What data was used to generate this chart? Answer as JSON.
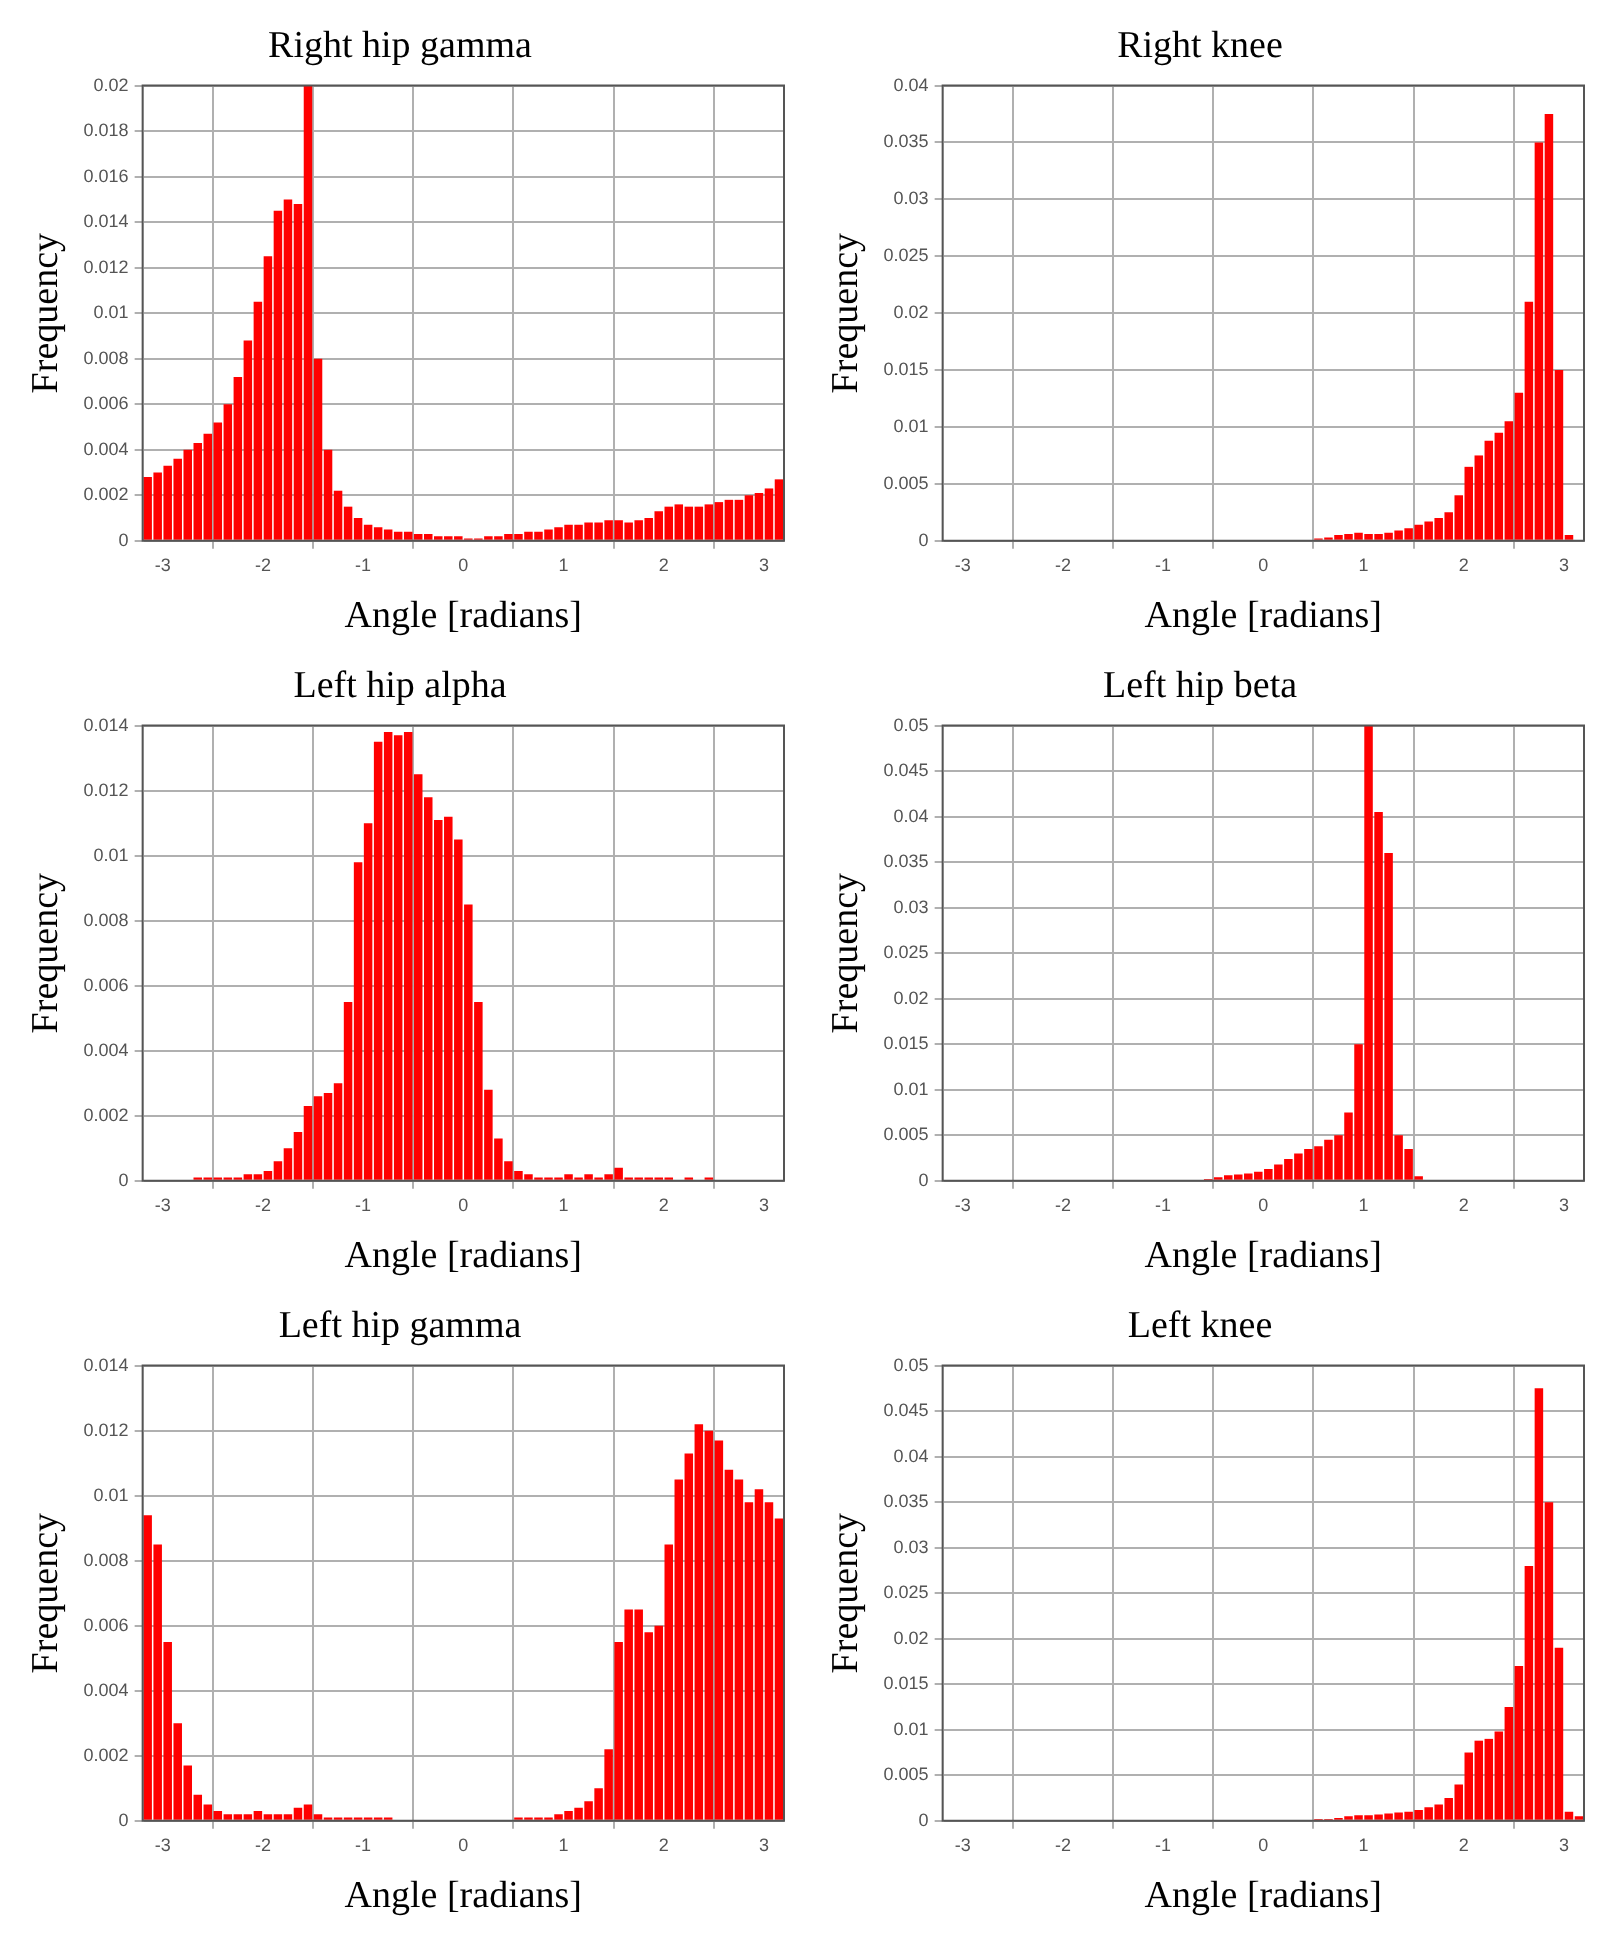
{
  "chart_data": [
    {
      "type": "histogram",
      "title": "Right hip gamma",
      "xlabel": "Angle [radians]",
      "ylabel": "Frequency",
      "color": "#ff0000",
      "grid": true,
      "xlim": [
        -3.2,
        3.2
      ],
      "xticks": [
        -3,
        -2,
        -1,
        0,
        1,
        2,
        3
      ],
      "ylim": [
        0,
        0.02
      ],
      "yticks": [
        0,
        0.002,
        0.004,
        0.006,
        0.008,
        0.01,
        0.012,
        0.014,
        0.016,
        0.018,
        0.02
      ],
      "bins": [
        -3.2,
        -3.1,
        -3.0,
        -2.9,
        -2.8,
        -2.7,
        -2.6,
        -2.5,
        -2.4,
        -2.3,
        -2.2,
        -2.1,
        -2.0,
        -1.9,
        -1.8,
        -1.7,
        -1.6,
        -1.5,
        -1.4,
        -1.3,
        -1.2,
        -1.1,
        -1.0,
        -0.9,
        -0.8,
        -0.7,
        -0.6,
        -0.5,
        -0.4,
        -0.3,
        -0.2,
        -0.1,
        0,
        0.1,
        0.2,
        0.3,
        0.4,
        0.5,
        0.6,
        0.7,
        0.8,
        0.9,
        1.0,
        1.1,
        1.2,
        1.3,
        1.4,
        1.5,
        1.6,
        1.7,
        1.8,
        1.9,
        2.0,
        2.1,
        2.2,
        2.3,
        2.4,
        2.5,
        2.6,
        2.7,
        2.8,
        2.9,
        3.0,
        3.1,
        3.2
      ],
      "values": [
        0.0028,
        0.003,
        0.0033,
        0.0036,
        0.004,
        0.0043,
        0.0047,
        0.0052,
        0.006,
        0.0072,
        0.0088,
        0.0105,
        0.0125,
        0.0145,
        0.015,
        0.0148,
        0.02,
        0.008,
        0.004,
        0.0022,
        0.0015,
        0.001,
        0.0007,
        0.0006,
        0.0005,
        0.0004,
        0.0004,
        0.0003,
        0.0003,
        0.0002,
        0.0002,
        0.0002,
        0.0001,
        0.0001,
        0.0002,
        0.0002,
        0.0003,
        0.0003,
        0.0004,
        0.0004,
        0.0005,
        0.0006,
        0.0007,
        0.0007,
        0.0008,
        0.0008,
        0.0009,
        0.0009,
        0.0008,
        0.0009,
        0.001,
        0.0013,
        0.0015,
        0.0016,
        0.0015,
        0.0015,
        0.0016,
        0.0017,
        0.0018,
        0.0018,
        0.002,
        0.0021,
        0.0023,
        0.0027
      ]
    },
    {
      "type": "histogram",
      "title": "Right knee",
      "xlabel": "Angle [radians]",
      "ylabel": "Frequency",
      "color": "#ff0000",
      "grid": true,
      "xlim": [
        -3.2,
        3.2
      ],
      "xticks": [
        -3,
        -2,
        -1,
        0,
        1,
        2,
        3
      ],
      "ylim": [
        0,
        0.04
      ],
      "yticks": [
        0,
        0.005,
        0.01,
        0.015,
        0.02,
        0.025,
        0.03,
        0.035,
        0.04
      ],
      "bins": [
        -3.2,
        -3.1,
        -3.0,
        -2.9,
        -2.8,
        -2.7,
        -2.6,
        -2.5,
        -2.4,
        -2.3,
        -2.2,
        -2.1,
        -2.0,
        -1.9,
        -1.8,
        -1.7,
        -1.6,
        -1.5,
        -1.4,
        -1.3,
        -1.2,
        -1.1,
        -1.0,
        -0.9,
        -0.8,
        -0.7,
        -0.6,
        -0.5,
        -0.4,
        -0.3,
        -0.2,
        -0.1,
        0,
        0.1,
        0.2,
        0.3,
        0.4,
        0.5,
        0.6,
        0.7,
        0.8,
        0.9,
        1.0,
        1.1,
        1.2,
        1.3,
        1.4,
        1.5,
        1.6,
        1.7,
        1.8,
        1.9,
        2.0,
        2.1,
        2.2,
        2.3,
        2.4,
        2.5,
        2.6,
        2.7,
        2.8,
        2.9,
        3.0,
        3.1,
        3.2
      ],
      "values": [
        0,
        0,
        0,
        0,
        0,
        0,
        0,
        0,
        0,
        0,
        0,
        0,
        0,
        0,
        0,
        0,
        0,
        0,
        0,
        0,
        0,
        0,
        0,
        0,
        0,
        0,
        0,
        0,
        0,
        0,
        0,
        0,
        0,
        0,
        0,
        0,
        0,
        0.0002,
        0.0003,
        0.0005,
        0.0006,
        0.0007,
        0.0006,
        0.0006,
        0.0007,
        0.0009,
        0.0011,
        0.0014,
        0.0017,
        0.002,
        0.0025,
        0.004,
        0.0065,
        0.0075,
        0.0088,
        0.0095,
        0.0105,
        0.013,
        0.021,
        0.035,
        0.0375,
        0.015,
        0.0005,
        0
      ]
    },
    {
      "type": "histogram",
      "title": "Left hip alpha",
      "xlabel": "Angle [radians]",
      "ylabel": "Frequency",
      "color": "#ff0000",
      "grid": true,
      "xlim": [
        -3.2,
        3.2
      ],
      "xticks": [
        -3,
        -2,
        -1,
        0,
        1,
        2,
        3
      ],
      "ylim": [
        0,
        0.014
      ],
      "yticks": [
        0,
        0.002,
        0.004,
        0.006,
        0.008,
        0.01,
        0.012,
        0.014
      ],
      "bins": [
        -3.2,
        -3.1,
        -3.0,
        -2.9,
        -2.8,
        -2.7,
        -2.6,
        -2.5,
        -2.4,
        -2.3,
        -2.2,
        -2.1,
        -2.0,
        -1.9,
        -1.8,
        -1.7,
        -1.6,
        -1.5,
        -1.4,
        -1.3,
        -1.2,
        -1.1,
        -1.0,
        -0.9,
        -0.8,
        -0.7,
        -0.6,
        -0.5,
        -0.4,
        -0.3,
        -0.2,
        -0.1,
        0,
        0.1,
        0.2,
        0.3,
        0.4,
        0.5,
        0.6,
        0.7,
        0.8,
        0.9,
        1.0,
        1.1,
        1.2,
        1.3,
        1.4,
        1.5,
        1.6,
        1.7,
        1.8,
        1.9,
        2.0,
        2.1,
        2.2,
        2.3,
        2.4,
        2.5,
        2.6,
        2.7,
        2.8,
        2.9,
        3.0,
        3.1,
        3.2
      ],
      "values": [
        0,
        0,
        0,
        0,
        0,
        0.0001,
        0.0001,
        0.0001,
        0.0001,
        0.0001,
        0.0002,
        0.0002,
        0.0003,
        0.0006,
        0.001,
        0.0015,
        0.0023,
        0.0026,
        0.0027,
        0.003,
        0.0055,
        0.0098,
        0.011,
        0.0135,
        0.0138,
        0.0137,
        0.0138,
        0.0125,
        0.0118,
        0.0111,
        0.0112,
        0.0105,
        0.0085,
        0.0055,
        0.0028,
        0.0013,
        0.0006,
        0.0003,
        0.0002,
        0.0001,
        0.0001,
        0.0001,
        0.0002,
        0.0001,
        0.0002,
        0.0001,
        0.0002,
        0.0004,
        0.0001,
        0.0001,
        0.0001,
        0.0001,
        0.0001,
        0,
        0.0001,
        0,
        0.0001,
        0,
        0,
        0,
        0,
        0,
        0,
        0
      ]
    },
    {
      "type": "histogram",
      "title": "Left hip beta",
      "xlabel": "Angle [radians]",
      "ylabel": "Frequency",
      "color": "#ff0000",
      "grid": true,
      "xlim": [
        -3.2,
        3.2
      ],
      "xticks": [
        -3,
        -2,
        -1,
        0,
        1,
        2,
        3
      ],
      "ylim": [
        0,
        0.05
      ],
      "yticks": [
        0,
        0.005,
        0.01,
        0.015,
        0.02,
        0.025,
        0.03,
        0.035,
        0.04,
        0.045,
        0.05
      ],
      "bins": [
        -3.2,
        -3.1,
        -3.0,
        -2.9,
        -2.8,
        -2.7,
        -2.6,
        -2.5,
        -2.4,
        -2.3,
        -2.2,
        -2.1,
        -2.0,
        -1.9,
        -1.8,
        -1.7,
        -1.6,
        -1.5,
        -1.4,
        -1.3,
        -1.2,
        -1.1,
        -1.0,
        -0.9,
        -0.8,
        -0.7,
        -0.6,
        -0.5,
        -0.4,
        -0.3,
        -0.2,
        -0.1,
        0,
        0.1,
        0.2,
        0.3,
        0.4,
        0.5,
        0.6,
        0.7,
        0.8,
        0.9,
        1.0,
        1.1,
        1.2,
        1.3,
        1.4,
        1.5,
        1.6,
        1.7,
        1.8,
        1.9,
        2.0,
        2.1,
        2.2,
        2.3,
        2.4,
        2.5,
        2.6,
        2.7,
        2.8,
        2.9,
        3.0,
        3.1,
        3.2
      ],
      "values": [
        0,
        0,
        0,
        0,
        0,
        0,
        0,
        0,
        0,
        0,
        0,
        0,
        0,
        0,
        0,
        0,
        0,
        0,
        0,
        0,
        0,
        0,
        0,
        0,
        0,
        0,
        0.0002,
        0.0004,
        0.0006,
        0.0007,
        0.0008,
        0.001,
        0.0013,
        0.0018,
        0.0024,
        0.003,
        0.0035,
        0.0038,
        0.0045,
        0.005,
        0.0075,
        0.015,
        0.05,
        0.0405,
        0.036,
        0.005,
        0.0035,
        0.0005,
        0,
        0,
        0,
        0,
        0,
        0,
        0,
        0,
        0,
        0,
        0,
        0,
        0,
        0,
        0,
        0
      ]
    },
    {
      "type": "histogram",
      "title": "Left hip gamma",
      "xlabel": "Angle [radians]",
      "ylabel": "Frequency",
      "color": "#ff0000",
      "grid": true,
      "xlim": [
        -3.2,
        3.2
      ],
      "xticks": [
        -3,
        -2,
        -1,
        0,
        1,
        2,
        3
      ],
      "ylim": [
        0,
        0.014
      ],
      "yticks": [
        0,
        0.002,
        0.004,
        0.006,
        0.008,
        0.01,
        0.012,
        0.014
      ],
      "bins": [
        -3.2,
        -3.1,
        -3.0,
        -2.9,
        -2.8,
        -2.7,
        -2.6,
        -2.5,
        -2.4,
        -2.3,
        -2.2,
        -2.1,
        -2.0,
        -1.9,
        -1.8,
        -1.7,
        -1.6,
        -1.5,
        -1.4,
        -1.3,
        -1.2,
        -1.1,
        -1.0,
        -0.9,
        -0.8,
        -0.7,
        -0.6,
        -0.5,
        -0.4,
        -0.3,
        -0.2,
        -0.1,
        0,
        0.1,
        0.2,
        0.3,
        0.4,
        0.5,
        0.6,
        0.7,
        0.8,
        0.9,
        1.0,
        1.1,
        1.2,
        1.3,
        1.4,
        1.5,
        1.6,
        1.7,
        1.8,
        1.9,
        2.0,
        2.1,
        2.2,
        2.3,
        2.4,
        2.5,
        2.6,
        2.7,
        2.8,
        2.9,
        3.0,
        3.1,
        3.2
      ],
      "values": [
        0.0094,
        0.0085,
        0.0055,
        0.003,
        0.0017,
        0.0008,
        0.0005,
        0.0003,
        0.0002,
        0.0002,
        0.0002,
        0.0003,
        0.0002,
        0.0002,
        0.0002,
        0.0004,
        0.0005,
        0.0002,
        0.0001,
        0.0001,
        0.0001,
        0.0001,
        0.0001,
        0.0001,
        0.0001,
        0,
        0,
        0,
        0,
        0,
        0,
        0,
        0,
        0,
        0,
        0,
        0,
        0.0001,
        0.0001,
        0.0001,
        0.0001,
        0.0002,
        0.0003,
        0.0004,
        0.0006,
        0.001,
        0.0022,
        0.0055,
        0.0065,
        0.0065,
        0.0058,
        0.006,
        0.0085,
        0.0105,
        0.0113,
        0.0122,
        0.012,
        0.0117,
        0.0108,
        0.0105,
        0.0098,
        0.0102,
        0.0098,
        0.0093
      ]
    },
    {
      "type": "histogram",
      "title": "Left knee",
      "xlabel": "Angle [radians]",
      "ylabel": "Frequency",
      "color": "#ff0000",
      "grid": true,
      "xlim": [
        -3.2,
        3.2
      ],
      "xticks": [
        -3,
        -2,
        -1,
        0,
        1,
        2,
        3
      ],
      "ylim": [
        0,
        0.05
      ],
      "yticks": [
        0,
        0.005,
        0.01,
        0.015,
        0.02,
        0.025,
        0.03,
        0.035,
        0.04,
        0.045,
        0.05
      ],
      "bins": [
        -3.2,
        -3.1,
        -3.0,
        -2.9,
        -2.8,
        -2.7,
        -2.6,
        -2.5,
        -2.4,
        -2.3,
        -2.2,
        -2.1,
        -2.0,
        -1.9,
        -1.8,
        -1.7,
        -1.6,
        -1.5,
        -1.4,
        -1.3,
        -1.2,
        -1.1,
        -1.0,
        -0.9,
        -0.8,
        -0.7,
        -0.6,
        -0.5,
        -0.4,
        -0.3,
        -0.2,
        -0.1,
        0,
        0.1,
        0.2,
        0.3,
        0.4,
        0.5,
        0.6,
        0.7,
        0.8,
        0.9,
        1.0,
        1.1,
        1.2,
        1.3,
        1.4,
        1.5,
        1.6,
        1.7,
        1.8,
        1.9,
        2.0,
        2.1,
        2.2,
        2.3,
        2.4,
        2.5,
        2.6,
        2.7,
        2.8,
        2.9,
        3.0,
        3.1,
        3.2
      ],
      "values": [
        0,
        0,
        0,
        0,
        0,
        0,
        0,
        0,
        0,
        0,
        0,
        0,
        0,
        0,
        0,
        0,
        0,
        0,
        0,
        0,
        0,
        0,
        0,
        0,
        0,
        0,
        0,
        0,
        0,
        0,
        0,
        0,
        0,
        0,
        0,
        0,
        0,
        0.0002,
        0.0002,
        0.0003,
        0.0005,
        0.0006,
        0.0006,
        0.0007,
        0.0008,
        0.0009,
        0.001,
        0.0012,
        0.0015,
        0.0018,
        0.0025,
        0.004,
        0.0075,
        0.0088,
        0.009,
        0.0098,
        0.0125,
        0.017,
        0.028,
        0.0475,
        0.035,
        0.019,
        0.001,
        0.0005
      ]
    }
  ]
}
